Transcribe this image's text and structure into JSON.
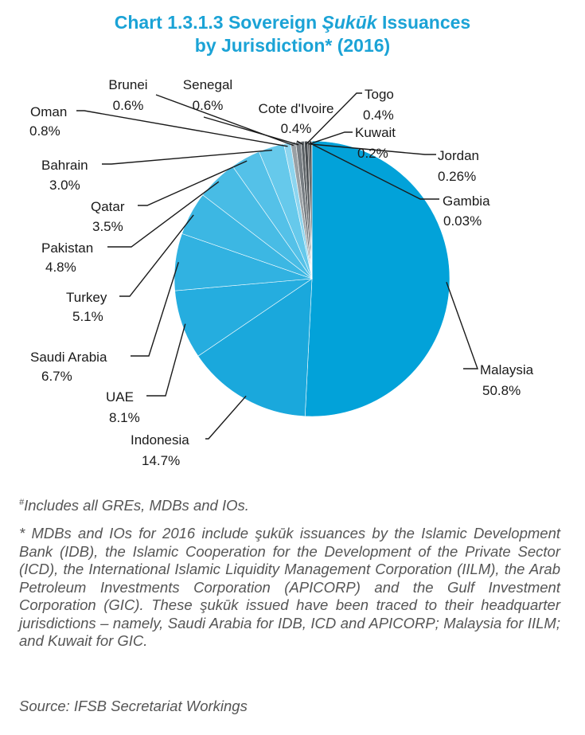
{
  "title": {
    "prefix": "Chart 1.3.1.3  Sovereign ",
    "italic": "Şukūk",
    "suffix": " Issuances",
    "line2": "by Jurisdiction* (2016)"
  },
  "chart_data": {
    "type": "pie",
    "title": "Chart 1.3.1.3 Sovereign Şukūk Issuances by Jurisdiction* (2016)",
    "unit": "%",
    "slices": [
      {
        "label": "Malaysia",
        "value": 50.8,
        "display": "50.8%",
        "color": "#02a2d9"
      },
      {
        "label": "Indonesia",
        "value": 14.7,
        "display": "14.7%",
        "color": "#1aa8dc"
      },
      {
        "label": "UAE",
        "value": 8.1,
        "display": "8.1%",
        "color": "#25addf"
      },
      {
        "label": "Saudi Arabia",
        "value": 6.7,
        "display": "6.7%",
        "color": "#31b2e1"
      },
      {
        "label": "Turkey",
        "value": 5.1,
        "display": "5.1%",
        "color": "#3cb7e3"
      },
      {
        "label": "Pakistan",
        "value": 4.8,
        "display": "4.8%",
        "color": "#48bce5"
      },
      {
        "label": "Qatar",
        "value": 3.5,
        "display": "3.5%",
        "color": "#54c1e8"
      },
      {
        "label": "Bahrain",
        "value": 3.0,
        "display": "3.0%",
        "color": "#66c9eb"
      },
      {
        "label": "Oman",
        "value": 0.8,
        "display": "0.8%",
        "color": "#8dd5ef"
      },
      {
        "label": "Brunei",
        "value": 0.6,
        "display": "0.6%",
        "color": "#9aa0a4"
      },
      {
        "label": "Senegal",
        "value": 0.6,
        "display": "0.6%",
        "color": "#777d82"
      },
      {
        "label": "Cote d'Ivoire",
        "value": 0.4,
        "display": "0.4%",
        "color": "#5c6266"
      },
      {
        "label": "Togo",
        "value": 0.4,
        "display": "0.4%",
        "color": "#484d51"
      },
      {
        "label": "Kuwait",
        "value": 0.2,
        "display": "0.2%",
        "color": "#3a3e41"
      },
      {
        "label": "Jordan",
        "value": 0.26,
        "display": "0.26%",
        "color": "#2a2d30"
      },
      {
        "label": "Gambia",
        "value": 0.03,
        "display": "0.03%",
        "color": "#1d1f21"
      }
    ]
  },
  "notes": {
    "footnote_hash_symbol": "#",
    "footnote_hash": "Includes all GREs, MDBs and IOs.",
    "footnote_star": "* MDBs and IOs for 2016 include şukūk issuances by the Islamic Development Bank (IDB), the Islamic Cooperation for the Development of the Private Sector (ICD), the International Islamic Liquidity Management Corporation (IILM), the Arab Petroleum Investments Corporation (APICORP) and the Gulf Investment Corporation (GIC). These şukūk issued have been traced to their headquarter jurisdictions – namely, Saudi Arabia for IDB, ICD and APICORP; Malaysia for IILM; and Kuwait for GIC.",
    "source": "Source: IFSB Secretariat Workings"
  }
}
